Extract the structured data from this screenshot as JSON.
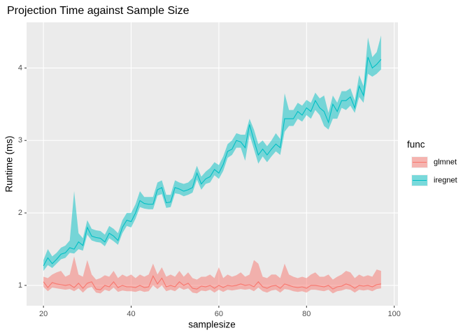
{
  "chart_data": {
    "type": "ribbon-line",
    "title": "Projection Time against Sample Size",
    "x_label": "samplesize",
    "y_label": "Runtime (ms)",
    "legend_title": "func",
    "x": [
      20,
      21,
      22,
      23,
      24,
      25,
      26,
      27,
      28,
      29,
      30,
      31,
      32,
      33,
      34,
      35,
      36,
      37,
      38,
      39,
      40,
      41,
      42,
      43,
      44,
      45,
      46,
      47,
      48,
      49,
      50,
      51,
      52,
      53,
      54,
      55,
      56,
      57,
      58,
      59,
      60,
      61,
      62,
      63,
      64,
      65,
      66,
      67,
      68,
      69,
      70,
      71,
      72,
      73,
      74,
      75,
      76,
      77,
      78,
      79,
      80,
      81,
      82,
      83,
      84,
      85,
      86,
      87,
      88,
      89,
      90,
      91,
      92,
      93,
      94,
      95,
      96,
      97
    ],
    "series": [
      {
        "name": "glmnet",
        "color": "#F8766D",
        "values": [
          1.05,
          0.97,
          1.04,
          1.02,
          1.01,
          1.0,
          1.01,
          0.97,
          1.03,
          0.96,
          1.03,
          1.05,
          0.95,
          0.94,
          1.0,
          0.98,
          1.05,
          0.97,
          1.0,
          0.98,
          0.98,
          0.97,
          1.0,
          0.97,
          0.98,
          1.13,
          1.02,
          1.1,
          0.98,
          1.0,
          0.98,
          1.05,
          1.0,
          1.03,
          0.96,
          0.95,
          0.99,
          0.98,
          1.0,
          0.96,
          1.0,
          0.97,
          1.0,
          0.99,
          1.0,
          1.02,
          1.0,
          1.01,
          0.98,
          1.05,
          0.98,
          0.96,
          0.99,
          1.0,
          0.96,
          1.02,
          1.0,
          0.98,
          0.97,
          0.98,
          0.96,
          1.0,
          1.0,
          0.99,
          0.98,
          1.0,
          0.95,
          0.98,
          0.99,
          1.02,
          1.0,
          0.96,
          1.0,
          0.99,
          1.0,
          0.98,
          1.01,
          1.02
        ],
        "lower": [
          0.98,
          0.92,
          0.97,
          0.96,
          0.95,
          0.94,
          0.95,
          0.92,
          0.96,
          0.9,
          0.96,
          0.98,
          0.9,
          0.89,
          0.94,
          0.92,
          0.97,
          0.91,
          0.93,
          0.92,
          0.92,
          0.91,
          0.93,
          0.91,
          0.92,
          1.0,
          0.95,
          1.0,
          0.92,
          0.94,
          0.92,
          0.97,
          0.94,
          0.96,
          0.9,
          0.89,
          0.93,
          0.92,
          0.94,
          0.9,
          0.94,
          0.91,
          0.94,
          0.93,
          0.94,
          0.95,
          0.94,
          0.95,
          0.92,
          0.97,
          0.92,
          0.9,
          0.93,
          0.94,
          0.9,
          0.95,
          0.94,
          0.92,
          0.91,
          0.92,
          0.9,
          0.94,
          0.94,
          0.93,
          0.92,
          0.94,
          0.89,
          0.92,
          0.93,
          0.95,
          0.94,
          0.9,
          0.94,
          0.93,
          0.94,
          0.92,
          0.95,
          0.96
        ],
        "upper": [
          1.12,
          1.1,
          1.15,
          1.18,
          1.2,
          1.12,
          1.15,
          1.4,
          1.15,
          1.12,
          1.35,
          1.15,
          1.08,
          1.1,
          1.14,
          1.12,
          1.2,
          1.1,
          1.15,
          1.12,
          1.15,
          1.1,
          1.15,
          1.12,
          1.15,
          1.3,
          1.15,
          1.25,
          1.12,
          1.15,
          1.12,
          1.2,
          1.12,
          1.18,
          1.1,
          1.08,
          1.12,
          1.12,
          1.15,
          1.1,
          1.25,
          1.1,
          1.15,
          1.12,
          1.14,
          1.18,
          1.12,
          1.15,
          1.35,
          1.3,
          1.12,
          1.1,
          1.15,
          1.15,
          1.1,
          1.3,
          1.15,
          1.12,
          1.1,
          1.12,
          1.1,
          1.15,
          1.18,
          1.12,
          1.12,
          1.15,
          1.08,
          1.12,
          1.15,
          1.2,
          1.18,
          1.1,
          1.15,
          1.12,
          1.14,
          1.12,
          1.22,
          1.2
        ]
      },
      {
        "name": "iregnet",
        "color": "#00BFC4",
        "values": [
          1.27,
          1.38,
          1.3,
          1.36,
          1.43,
          1.45,
          1.52,
          1.5,
          1.6,
          1.55,
          1.8,
          1.68,
          1.66,
          1.65,
          1.6,
          1.72,
          1.68,
          1.62,
          1.8,
          1.9,
          1.88,
          2.0,
          2.17,
          2.13,
          2.12,
          2.12,
          2.32,
          2.35,
          2.14,
          2.15,
          2.35,
          2.33,
          2.3,
          2.32,
          2.35,
          2.55,
          2.4,
          2.47,
          2.5,
          2.6,
          2.55,
          2.67,
          2.85,
          2.88,
          3.0,
          2.98,
          2.9,
          3.22,
          3.0,
          2.8,
          2.88,
          2.8,
          2.88,
          2.95,
          2.9,
          3.3,
          3.3,
          3.3,
          3.4,
          3.35,
          3.45,
          3.4,
          3.55,
          3.45,
          3.4,
          3.25,
          3.5,
          3.4,
          3.55,
          3.55,
          3.6,
          3.45,
          3.75,
          3.62,
          4.15,
          4.0,
          4.05,
          4.12
        ],
        "lower": [
          1.2,
          1.28,
          1.24,
          1.3,
          1.36,
          1.38,
          1.45,
          1.44,
          1.5,
          1.48,
          1.7,
          1.62,
          1.6,
          1.59,
          1.54,
          1.65,
          1.61,
          1.56,
          1.72,
          1.82,
          1.8,
          1.92,
          2.08,
          2.06,
          2.05,
          2.05,
          2.24,
          2.26,
          2.07,
          2.08,
          2.27,
          2.26,
          2.23,
          2.25,
          2.28,
          2.46,
          2.32,
          2.4,
          2.42,
          2.52,
          2.47,
          2.58,
          2.76,
          2.8,
          2.9,
          2.9,
          2.72,
          3.08,
          2.88,
          2.68,
          2.78,
          2.7,
          2.78,
          2.85,
          2.8,
          3.12,
          3.2,
          3.2,
          3.3,
          3.26,
          3.35,
          3.3,
          3.42,
          3.35,
          3.2,
          3.15,
          3.3,
          3.3,
          3.45,
          3.42,
          3.48,
          3.38,
          3.6,
          3.52,
          3.92,
          3.88,
          3.92,
          3.98
        ],
        "upper": [
          1.35,
          1.5,
          1.4,
          1.45,
          1.52,
          1.55,
          1.62,
          2.3,
          1.72,
          1.65,
          1.9,
          1.78,
          1.76,
          1.75,
          1.7,
          1.82,
          1.78,
          1.72,
          1.9,
          2.0,
          2.0,
          2.12,
          2.3,
          2.22,
          2.22,
          2.22,
          2.42,
          2.45,
          2.25,
          2.25,
          2.45,
          2.42,
          2.4,
          2.42,
          2.48,
          2.65,
          2.5,
          2.57,
          2.62,
          2.7,
          2.66,
          2.78,
          2.95,
          3.0,
          3.1,
          3.08,
          3.08,
          3.3,
          3.15,
          2.95,
          3.0,
          2.92,
          3.0,
          3.1,
          3.02,
          3.65,
          3.42,
          3.42,
          3.52,
          3.48,
          3.56,
          3.52,
          3.66,
          3.58,
          3.62,
          3.38,
          3.62,
          3.52,
          3.68,
          3.68,
          3.72,
          3.55,
          3.9,
          3.75,
          4.42,
          4.15,
          4.22,
          4.45
        ]
      }
    ],
    "xlim": [
      16.15,
      100.85
    ],
    "ylim": [
      0.72,
      4.63
    ],
    "xticks": [
      20,
      40,
      60,
      80,
      100
    ],
    "yticks": [
      1,
      2,
      3,
      4
    ],
    "grid": true
  }
}
